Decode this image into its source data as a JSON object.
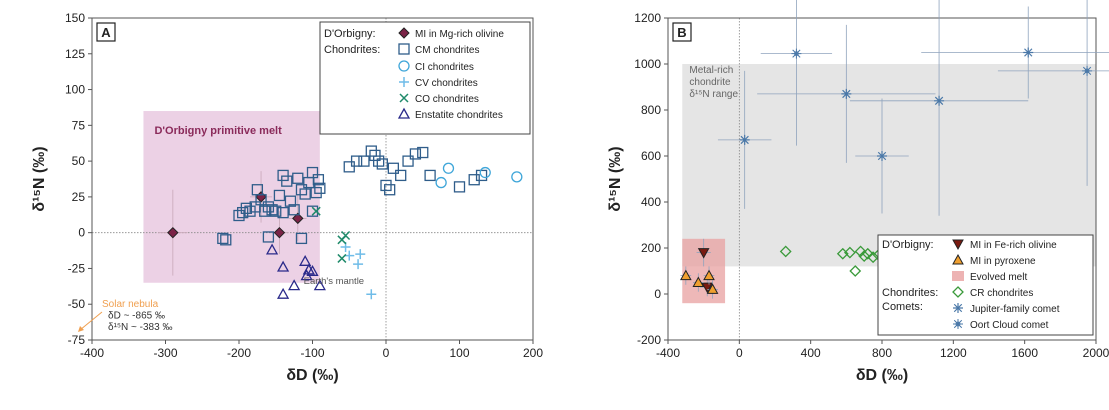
{
  "chart_data": [
    {
      "type": "scatter",
      "panel_label": "A",
      "xlabel": "δD (‰)",
      "ylabel": "δ¹⁵N (‰)",
      "xlim": [
        -400,
        200
      ],
      "ylim": [
        -75,
        150
      ],
      "xticks": [
        "-400",
        "-300",
        "-200",
        "-100",
        "0",
        "100",
        "200"
      ],
      "yticks": [
        "-75",
        "-50",
        "-25",
        "0",
        "25",
        "50",
        "75",
        "100",
        "125",
        "150"
      ],
      "grid": false,
      "reference_lines": {
        "x": 0,
        "y": 0
      },
      "legend": {
        "placement": "top-right",
        "group_labels": [
          "D'Orbigny:",
          "Chondrites:"
        ],
        "entries": [
          "MI in Mg-rich olivine",
          "CM chondrites",
          "CI chondrites",
          "CV chondrites",
          "CO chondrites",
          "Enstatite chondrites"
        ]
      },
      "annotations": [
        {
          "text": "D'Orbigny primitive melt",
          "region": {
            "x": [
              -330,
              -90
            ],
            "y": [
              -35,
              85
            ]
          },
          "color": "#e9c9e0"
        },
        {
          "text": "Earth's mantle",
          "region": {
            "x": [
              -220,
              -60
            ],
            "y": [
              -5,
              -47
            ]
          }
        },
        {
          "text": "Solar nebula",
          "color": "#f0a050"
        },
        {
          "text": "δD ~ -865 ‰"
        },
        {
          "text": "δ¹⁵N ~ -383 ‰"
        }
      ],
      "series": [
        {
          "name": "MI in Mg-rich olivine",
          "color": "#7b2347",
          "points": [
            [
              -290,
              0
            ],
            [
              -170,
              25
            ],
            [
              -145,
              0
            ],
            [
              -120,
              10
            ]
          ],
          "xerr": [
            20,
            15,
            12,
            12
          ],
          "yerr": [
            30,
            18,
            15,
            16
          ]
        },
        {
          "name": "CM chondrites",
          "color": "#2f5d8a",
          "points": [
            [
              -222,
              -4
            ],
            [
              -218,
              -5
            ],
            [
              -200,
              12
            ],
            [
              -195,
              14
            ],
            [
              -190,
              17
            ],
            [
              -185,
              15
            ],
            [
              -178,
              18
            ],
            [
              -175,
              30
            ],
            [
              -170,
              23
            ],
            [
              -165,
              15
            ],
            [
              -160,
              18
            ],
            [
              -155,
              16
            ],
            [
              -150,
              15
            ],
            [
              -145,
              26
            ],
            [
              -140,
              40
            ],
            [
              -135,
              36
            ],
            [
              -130,
              22
            ],
            [
              -125,
              16
            ],
            [
              -120,
              38
            ],
            [
              -115,
              30
            ],
            [
              -110,
              27
            ],
            [
              -105,
              35
            ],
            [
              -100,
              42
            ],
            [
              -95,
              28
            ],
            [
              -92,
              37
            ],
            [
              -90,
              31
            ],
            [
              -140,
              14
            ],
            [
              -160,
              -3
            ],
            [
              -115,
              -4
            ],
            [
              -100,
              15
            ],
            [
              -50,
              46
            ],
            [
              -40,
              50
            ],
            [
              -30,
              50
            ],
            [
              -20,
              57
            ],
            [
              -15,
              54
            ],
            [
              -10,
              50
            ],
            [
              -5,
              48
            ],
            [
              0,
              33
            ],
            [
              5,
              30
            ],
            [
              10,
              45
            ],
            [
              20,
              40
            ],
            [
              30,
              50
            ],
            [
              40,
              55
            ],
            [
              50,
              56
            ],
            [
              60,
              40
            ],
            [
              100,
              32
            ],
            [
              120,
              37
            ],
            [
              130,
              40
            ]
          ]
        },
        {
          "name": "CI chondrites",
          "color": "#3fa6d9",
          "points": [
            [
              75,
              35
            ],
            [
              85,
              45
            ],
            [
              135,
              42
            ],
            [
              178,
              39
            ]
          ]
        },
        {
          "name": "CV chondrites",
          "color": "#6fbce8",
          "points": [
            [
              -55,
              -10
            ],
            [
              -50,
              -16
            ],
            [
              -38,
              -22
            ],
            [
              -35,
              -15
            ],
            [
              -20,
              -43
            ]
          ]
        },
        {
          "name": "CO chondrites",
          "color": "#1f8a6a",
          "points": [
            [
              -95,
              15
            ],
            [
              -60,
              -5
            ],
            [
              -55,
              -2
            ],
            [
              -60,
              -18
            ]
          ]
        },
        {
          "name": "Enstatite chondrites",
          "color": "#2a2a8a",
          "points": [
            [
              -155,
              -12
            ],
            [
              -140,
              -24
            ],
            [
              -125,
              -37
            ],
            [
              -110,
              -20
            ],
            [
              -108,
              -30
            ],
            [
              -105,
              -26
            ],
            [
              -100,
              -27
            ],
            [
              -90,
              -37
            ],
            [
              -140,
              -43
            ]
          ]
        }
      ]
    },
    {
      "type": "scatter",
      "panel_label": "B",
      "xlabel": "δD (‰)",
      "ylabel": "δ¹⁵N (‰)",
      "xlim": [
        -400,
        2000
      ],
      "ylim": [
        -200,
        1200
      ],
      "xticks": [
        "-400",
        "0",
        "400",
        "800",
        "1200",
        "1600",
        "2000"
      ],
      "yticks": [
        "-200",
        "0",
        "200",
        "400",
        "600",
        "800",
        "1000",
        "1200"
      ],
      "grid": false,
      "reference_lines": {
        "x": 0
      },
      "legend": {
        "placement": "bottom-right",
        "group_labels": [
          "D'Orbigny:",
          "Chondrites:",
          "Comets:"
        ],
        "entries": [
          "MI in Fe-rich olivine",
          "MI in pyroxene",
          "Evolved melt",
          "CR chondrites",
          "Jupiter-family comet",
          "Oort Cloud comet"
        ]
      },
      "annotations": [
        {
          "text": "Metal-rich chondrite δ¹⁵N range",
          "region": {
            "x": [
              -320,
              2000
            ],
            "y": [
              120,
              1000
            ]
          },
          "color": "#dcdcdc"
        },
        {
          "text": "Evolved melt",
          "region": {
            "x": [
              -320,
              -80
            ],
            "y": [
              -40,
              240
            ]
          },
          "color": "#e8a0a0"
        }
      ],
      "series": [
        {
          "name": "MI in Fe-rich olivine",
          "color": "#7a1a10",
          "points": [
            [
              -200,
              180
            ],
            [
              -180,
              30
            ]
          ],
          "xerr": [
            40,
            40
          ],
          "yerr": [
            60,
            40
          ]
        },
        {
          "name": "MI in pyroxene",
          "color": "#f0a030",
          "points": [
            [
              -300,
              80
            ],
            [
              -230,
              50
            ],
            [
              -170,
              80
            ],
            [
              -150,
              20
            ]
          ],
          "xerr": [
            30,
            30,
            30,
            30
          ],
          "yerr": [
            40,
            40,
            40,
            40
          ]
        },
        {
          "name": "CR chondrites",
          "color": "#3a9a3a",
          "points": [
            [
              260,
              185
            ],
            [
              580,
              175
            ],
            [
              620,
              180
            ],
            [
              650,
              100
            ],
            [
              680,
              185
            ],
            [
              700,
              165
            ],
            [
              720,
              175
            ],
            [
              750,
              160
            ],
            [
              780,
              170
            ]
          ]
        },
        {
          "name": "Jupiter-family comet",
          "color": "#4a78a8",
          "points": [
            [
              30,
              670
            ],
            [
              600,
              870
            ],
            [
              800,
              600
            ],
            [
              1120,
              840
            ],
            [
              1620,
              1050
            ]
          ],
          "xerr": [
            150,
            500,
            150,
            500,
            600
          ],
          "yerr": [
            300,
            300,
            250,
            500,
            200
          ]
        },
        {
          "name": "Oort Cloud comet",
          "color": "#4a78a8",
          "points": [
            [
              320,
              1045
            ],
            [
              1950,
              970
            ]
          ],
          "xerr": [
            200,
            500
          ],
          "yerr": [
            400,
            500
          ]
        }
      ]
    }
  ]
}
